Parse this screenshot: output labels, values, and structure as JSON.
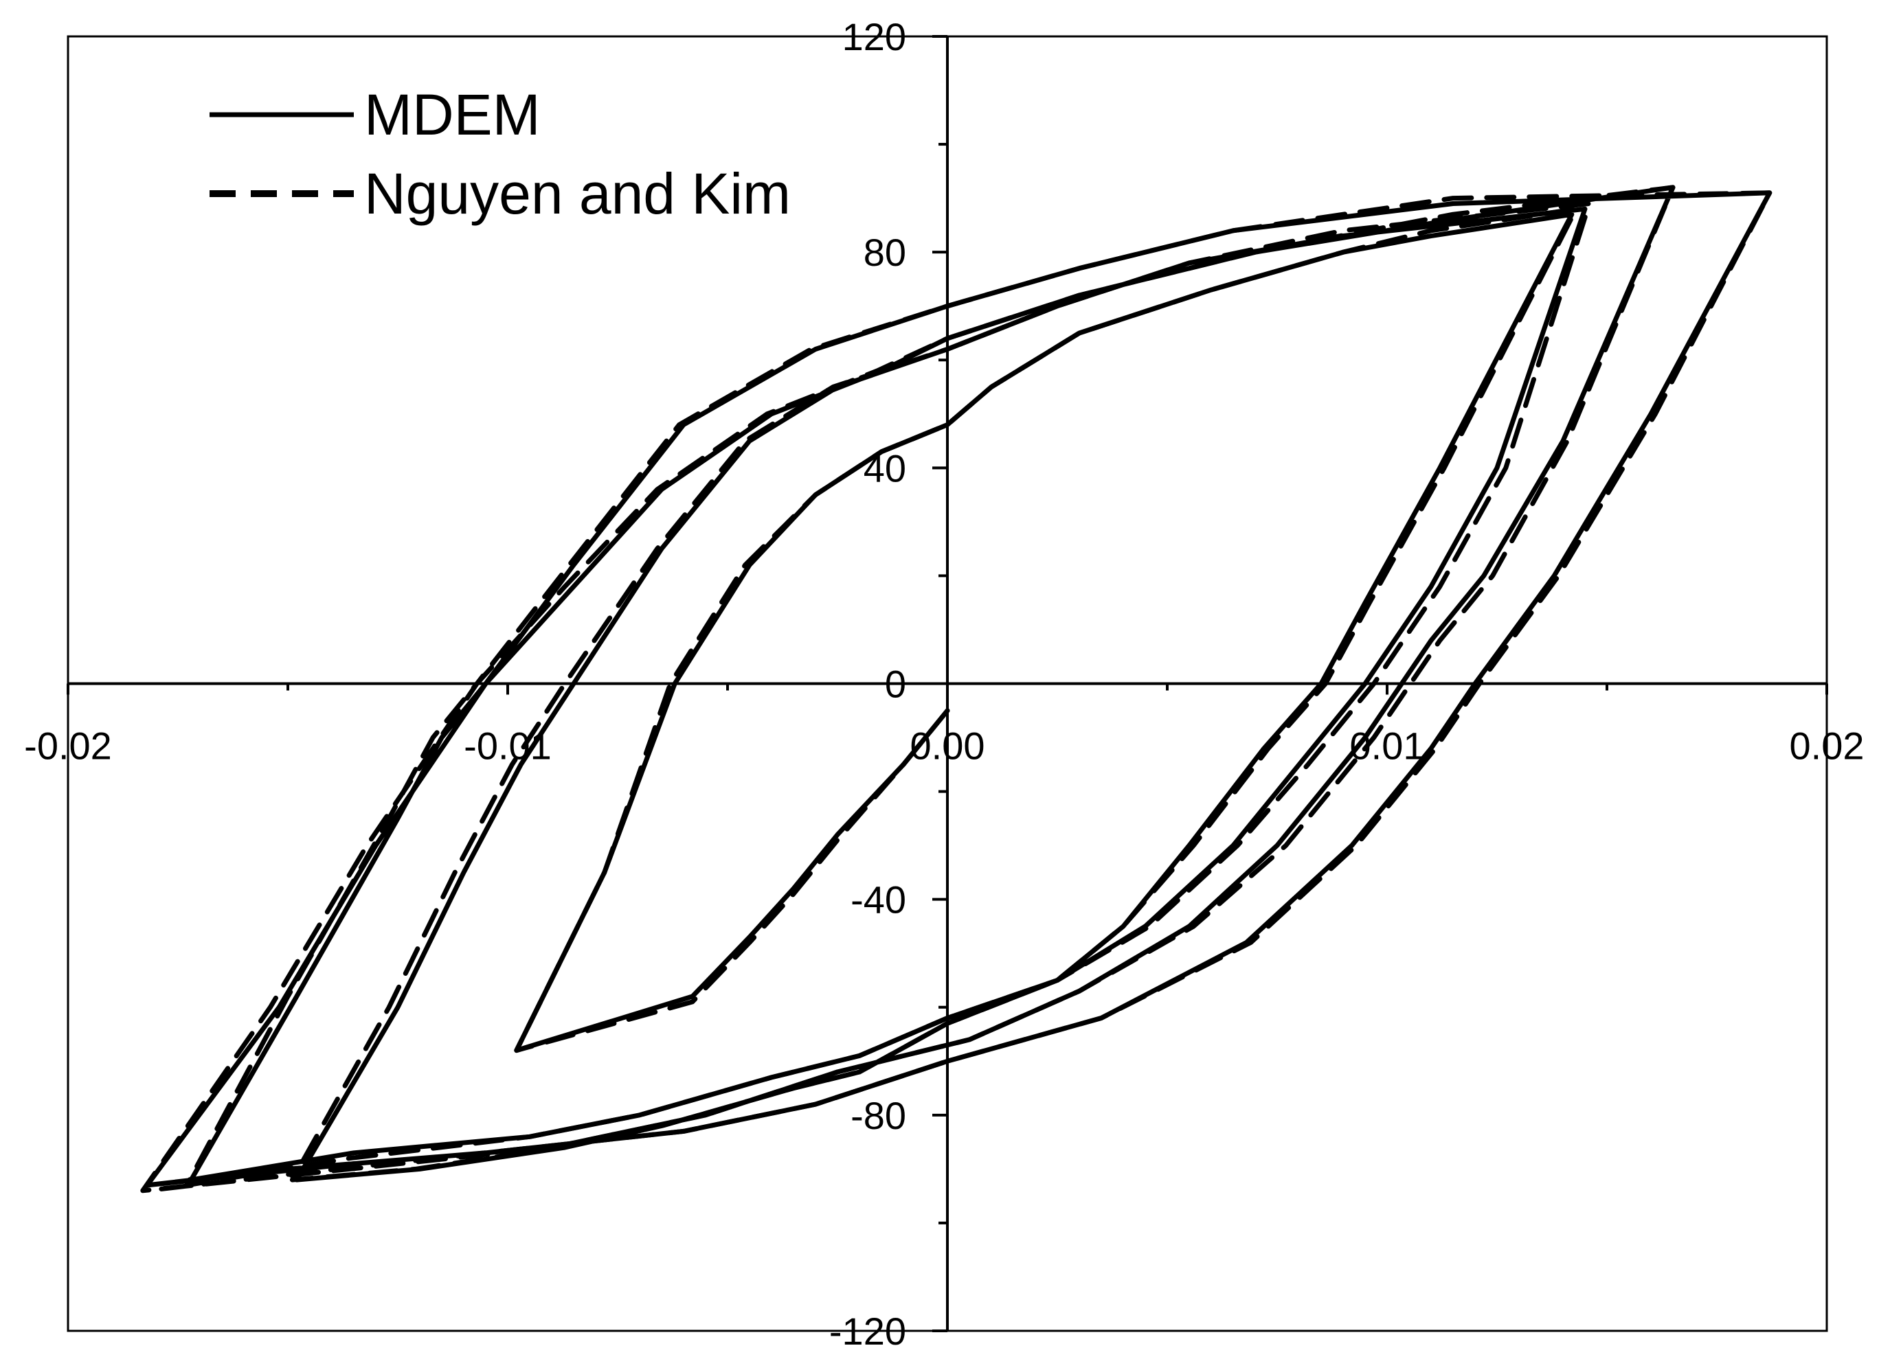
{
  "chart_data": {
    "type": "line",
    "title": "",
    "xlabel": "",
    "ylabel": "",
    "xlim": [
      -0.02,
      0.02
    ],
    "ylim": [
      -120,
      120
    ],
    "x_ticks": [
      "-0.02",
      "-0.01",
      "0.00",
      "0.01",
      "0.02"
    ],
    "x_tick_values": [
      -0.02,
      -0.01,
      0.0,
      0.01,
      0.02
    ],
    "y_ticks": [
      "120",
      "80",
      "40",
      "0",
      "-40",
      "-80",
      "-120"
    ],
    "y_tick_values": [
      120,
      80,
      40,
      0,
      -40,
      -80,
      -120
    ],
    "grid": false,
    "legend_position": "top-left",
    "series": [
      {
        "name": "MDEM",
        "style": "solid",
        "x": [
          0.0,
          -0.001,
          -0.0025,
          -0.0035,
          -0.0045,
          -0.0058,
          -0.0098,
          -0.0078,
          -0.0062,
          -0.0045,
          -0.003,
          -0.0015,
          0.0,
          0.001,
          0.003,
          0.006,
          0.009,
          0.011,
          0.0142,
          0.0112,
          0.0095,
          0.0085,
          0.0072,
          0.0055,
          0.004,
          0.0025,
          0.0,
          -0.002,
          -0.0035,
          -0.0065,
          -0.0087,
          -0.012,
          -0.0148,
          -0.0125,
          -0.011,
          -0.0097,
          -0.0085,
          -0.0065,
          -0.0045,
          -0.0025,
          0.0,
          0.0025,
          0.0055,
          0.009,
          0.0145,
          0.0125,
          0.011,
          0.0095,
          0.008,
          0.0065,
          0.0045,
          0.0025,
          0.0,
          -0.002,
          -0.004,
          -0.007,
          -0.0095,
          -0.0135,
          -0.0172,
          -0.0148,
          -0.0125,
          -0.0115,
          -0.0105,
          -0.0085,
          -0.0065,
          -0.004,
          -0.0015,
          0.0,
          0.003,
          0.007,
          0.0115,
          0.0165,
          0.014,
          0.0122,
          0.011,
          0.0095,
          0.0075,
          0.0055,
          0.003,
          0.0005,
          -0.0025,
          -0.0055,
          -0.009,
          -0.0135,
          -0.0182,
          -0.0152,
          -0.013,
          -0.0115,
          -0.0105,
          -0.0085,
          -0.006,
          -0.003,
          0.0,
          0.003,
          0.0065,
          0.0115,
          0.0187,
          0.016,
          0.0138,
          0.012,
          0.011,
          0.0092,
          0.0068,
          0.0035,
          0.0,
          -0.003,
          -0.006,
          -0.0105,
          -0.015,
          -0.0182
        ],
        "y": [
          -5,
          -15,
          -28,
          -38,
          -47,
          -58,
          -68,
          -35,
          0,
          22,
          35,
          43,
          48,
          55,
          65,
          73,
          80,
          83,
          87,
          40,
          15,
          0,
          -12,
          -30,
          -45,
          -55,
          -63,
          -72,
          -75,
          -82,
          -86,
          -90,
          -92,
          -60,
          -35,
          -15,
          0,
          25,
          45,
          55,
          62,
          70,
          78,
          83,
          88,
          40,
          18,
          0,
          -15,
          -30,
          -45,
          -55,
          -62,
          -69,
          -73,
          -80,
          -84,
          -87,
          -92,
          -58,
          -25,
          -10,
          0,
          18,
          36,
          50,
          58,
          64,
          72,
          80,
          86,
          92,
          45,
          20,
          8,
          -10,
          -30,
          -45,
          -57,
          -66,
          -72,
          -80,
          -86,
          -89,
          -93,
          -60,
          -30,
          -12,
          0,
          22,
          48,
          62,
          70,
          77,
          84,
          89,
          91,
          50,
          20,
          0,
          -12,
          -30,
          -48,
          -62,
          -70,
          -78,
          -83,
          -87,
          -90,
          -93
        ]
      },
      {
        "name": "Nguyen and Kim",
        "style": "dashed",
        "x": [
          0.0,
          -0.001,
          -0.0025,
          -0.0035,
          -0.0045,
          -0.0058,
          -0.0098,
          -0.0078,
          -0.0063,
          -0.0046,
          -0.003,
          -0.0015,
          0.0,
          0.001,
          0.003,
          0.006,
          0.009,
          0.011,
          0.0143,
          0.0113,
          0.0096,
          0.0086,
          0.0073,
          0.0056,
          0.004,
          0.0025,
          0.0,
          -0.002,
          -0.0035,
          -0.0065,
          -0.0088,
          -0.0121,
          -0.0149,
          -0.0127,
          -0.0112,
          -0.0099,
          -0.0087,
          -0.0066,
          -0.0046,
          -0.0026,
          0.0,
          0.0025,
          0.0055,
          0.009,
          0.0146,
          0.0127,
          0.0112,
          0.0097,
          0.0082,
          0.0066,
          0.0046,
          0.0025,
          0.0,
          -0.002,
          -0.004,
          -0.007,
          -0.0095,
          -0.0136,
          -0.0173,
          -0.015,
          -0.0127,
          -0.0117,
          -0.0107,
          -0.0087,
          -0.0066,
          -0.0041,
          -0.0016,
          0.0,
          0.003,
          0.007,
          0.0115,
          0.0165,
          0.0141,
          0.0124,
          0.0112,
          0.0097,
          0.0077,
          0.0056,
          0.003,
          0.0005,
          -0.0025,
          -0.0055,
          -0.009,
          -0.0136,
          -0.0183,
          -0.0154,
          -0.0132,
          -0.0117,
          -0.0107,
          -0.0086,
          -0.0061,
          -0.0031,
          0.0,
          0.003,
          0.0065,
          0.0115,
          0.0187,
          0.0161,
          0.0139,
          0.0121,
          0.0111,
          0.0093,
          0.0069,
          0.0035,
          0.0,
          -0.003,
          -0.006,
          -0.0105,
          -0.015,
          -0.0182
        ],
        "y": [
          -5,
          -15,
          -29,
          -39,
          -48,
          -59,
          -68,
          -35,
          0,
          22,
          35,
          43,
          48,
          55,
          65,
          73,
          80,
          84,
          88,
          40,
          15,
          0,
          -12,
          -30,
          -45,
          -55,
          -63,
          -72,
          -75,
          -82,
          -86,
          -90,
          -92,
          -60,
          -35,
          -15,
          0,
          25,
          45,
          55,
          62,
          70,
          78,
          84,
          89,
          40,
          18,
          0,
          -15,
          -30,
          -45,
          -55,
          -62,
          -69,
          -73,
          -80,
          -84,
          -88,
          -93,
          -58,
          -25,
          -10,
          0,
          18,
          36,
          50,
          58,
          64,
          72,
          80,
          87,
          92,
          45,
          20,
          8,
          -10,
          -30,
          -45,
          -57,
          -66,
          -72,
          -80,
          -86,
          -90,
          -94,
          -60,
          -30,
          -12,
          0,
          22,
          48,
          62,
          70,
          77,
          84,
          90,
          91,
          50,
          20,
          0,
          -12,
          -30,
          -48,
          -62,
          -70,
          -78,
          -83,
          -87,
          -91,
          -94
        ]
      }
    ]
  }
}
